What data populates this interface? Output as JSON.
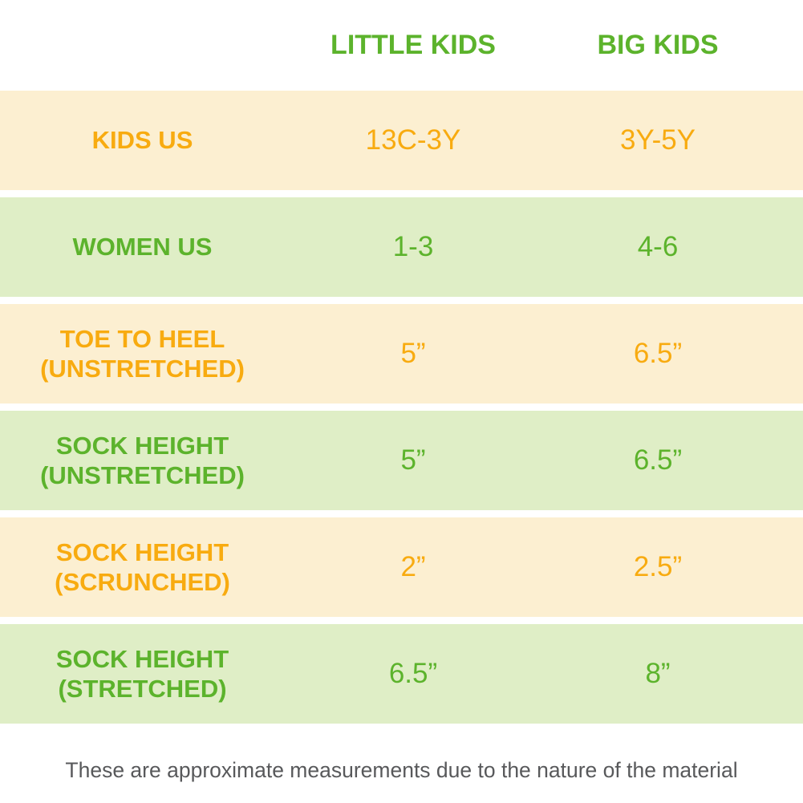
{
  "table": {
    "columns": [
      "LITTLE KIDS",
      "BIG KIDS"
    ],
    "rows": [
      {
        "label": "KIDS US",
        "label2": "",
        "values": [
          "13C-3Y",
          "3Y-5Y"
        ],
        "theme": "orange"
      },
      {
        "label": "WOMEN US",
        "label2": "",
        "values": [
          "1-3",
          "4-6"
        ],
        "theme": "green"
      },
      {
        "label": "TOE TO HEEL",
        "label2": "(UNSTRETCHED)",
        "values": [
          "5”",
          "6.5”"
        ],
        "theme": "orange"
      },
      {
        "label": "SOCK HEIGHT",
        "label2": "(UNSTRETCHED)",
        "values": [
          "5”",
          "6.5”"
        ],
        "theme": "green"
      },
      {
        "label": "SOCK HEIGHT",
        "label2": "(SCRUNCHED)",
        "values": [
          "2”",
          "2.5”"
        ],
        "theme": "orange"
      },
      {
        "label": "SOCK HEIGHT",
        "label2": "(STRETCHED)",
        "values": [
          "6.5”",
          "8”"
        ],
        "theme": "green"
      }
    ],
    "footnote": "These are approximate measurements due to the nature of the material"
  },
  "colors": {
    "green_text": "#5cb32c",
    "orange_text": "#f8ab10",
    "green_bg": "#dfeec6",
    "cream_bg": "#fcefd1",
    "note_gray": "#58595b"
  },
  "chart_data": {
    "type": "table",
    "title": "Kids sock size chart",
    "column_headers": [
      "",
      "LITTLE KIDS",
      "BIG KIDS"
    ],
    "rows": [
      [
        "KIDS US",
        "13C-3Y",
        "3Y-5Y"
      ],
      [
        "WOMEN US",
        "1-3",
        "4-6"
      ],
      [
        "TOE TO HEEL (UNSTRETCHED)",
        "5\"",
        "6.5\""
      ],
      [
        "SOCK HEIGHT (UNSTRETCHED)",
        "5\"",
        "6.5\""
      ],
      [
        "SOCK HEIGHT (SCRUNCHED)",
        "2\"",
        "2.5\""
      ],
      [
        "SOCK HEIGHT (STRETCHED)",
        "6.5\"",
        "8\""
      ]
    ],
    "footnote": "These are approximate measurements due to the nature of the material",
    "layout_hints": "alternating cream/light-green full-width bands; label column left, two size columns; green and amber text"
  }
}
